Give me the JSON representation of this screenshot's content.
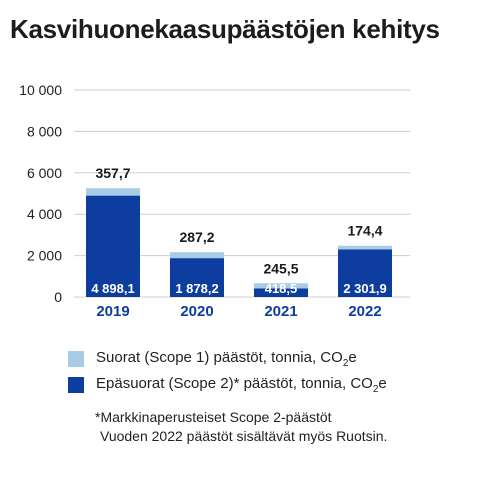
{
  "title": "Kasvihuonekaasupäästöjen kehitys",
  "colors": {
    "scope1": "#a9cce6",
    "scope2": "#0e3da0",
    "axis_label": "#0e3da0",
    "grid": "#cfcfcf"
  },
  "chart_data": {
    "type": "bar",
    "stacked": true,
    "categories": [
      "2019",
      "2020",
      "2021",
      "2022"
    ],
    "series": [
      {
        "name": "Epäsuorat (Scope 2)* päästöt, tonnia, CO₂e",
        "values": [
          4898.1,
          1878.2,
          418.5,
          2301.9
        ],
        "labels": [
          "4 898,1",
          "1 878,2",
          "418,5",
          "2 301,9"
        ]
      },
      {
        "name": "Suorat (Scope 1) päästöt, tonnia, CO₂e",
        "values": [
          357.7,
          287.2,
          245.5,
          174.4
        ],
        "labels": [
          "357,7",
          "287,2",
          "245,5",
          "174,4"
        ]
      }
    ],
    "ylim": [
      0,
      10000
    ],
    "yticks": [
      0,
      2000,
      4000,
      6000,
      8000,
      10000
    ],
    "ytick_labels": [
      "0",
      "2 000",
      "4 000",
      "6 000",
      "8 000",
      "10 000"
    ],
    "grid": true,
    "legend_position": "bottom"
  },
  "legend": {
    "scope1": {
      "prefix": "Suorat (Scope 1) päästöt, tonnia, CO",
      "sub": "2",
      "suffix": "e"
    },
    "scope2": {
      "prefix": "Epäsuorat (Scope 2)* päästöt, tonnia, CO",
      "sub": "2",
      "suffix": "e"
    }
  },
  "footnote": {
    "line1": "*Markkinaperusteiset Scope 2-päästöt",
    "line2": "Vuoden 2022 päästöt sisältävät myös Ruotsin."
  }
}
